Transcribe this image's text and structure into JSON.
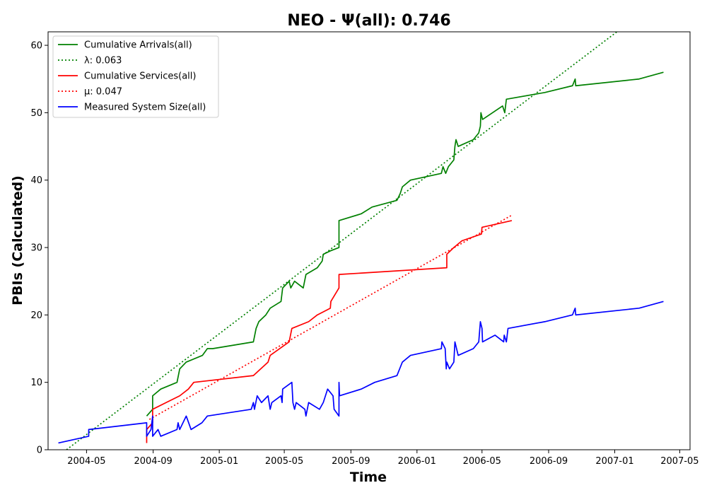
{
  "chart_data": {
    "type": "line",
    "title": "NEO -  Ψ(all): 0.746",
    "xlabel": "Time",
    "ylabel": "PBIs (Calculated)",
    "xlim": [
      "2004-02-20",
      "2007-05-20"
    ],
    "ylim": [
      0,
      62
    ],
    "x_ticks": [
      "2004-05",
      "2004-09",
      "2005-01",
      "2005-05",
      "2005-09",
      "2006-01",
      "2006-05",
      "2006-09",
      "2007-01",
      "2007-05"
    ],
    "y_ticks": [
      0,
      10,
      20,
      30,
      40,
      50,
      60
    ],
    "grid": false,
    "legend_position": "top-left",
    "series": [
      {
        "name": "Cumulative Arrivals(all)",
        "style": "solid",
        "color": "#008000",
        "points": [
          [
            "2004-08-20",
            5
          ],
          [
            "2004-08-31",
            6
          ],
          [
            "2004-08-31",
            8
          ],
          [
            "2004-09-15",
            9
          ],
          [
            "2004-10-15",
            10
          ],
          [
            "2004-10-20",
            12
          ],
          [
            "2004-11-01",
            13
          ],
          [
            "2004-12-01",
            14
          ],
          [
            "2004-12-10",
            15
          ],
          [
            "2004-12-20",
            15
          ],
          [
            "2005-03-05",
            16
          ],
          [
            "2005-03-10",
            18
          ],
          [
            "2005-03-15",
            19
          ],
          [
            "2005-03-28",
            20
          ],
          [
            "2005-04-05",
            21
          ],
          [
            "2005-04-25",
            22
          ],
          [
            "2005-04-28",
            24
          ],
          [
            "2005-05-10",
            25
          ],
          [
            "2005-05-13",
            24
          ],
          [
            "2005-05-20",
            25
          ],
          [
            "2005-06-05",
            24
          ],
          [
            "2005-06-10",
            26
          ],
          [
            "2005-07-01",
            27
          ],
          [
            "2005-07-10",
            28
          ],
          [
            "2005-07-12",
            29
          ],
          [
            "2005-07-25",
            29.5
          ],
          [
            "2005-08-10",
            30
          ],
          [
            "2005-08-10",
            34
          ],
          [
            "2005-09-20",
            35
          ],
          [
            "2005-10-10",
            36
          ],
          [
            "2005-11-25",
            37
          ],
          [
            "2005-12-01",
            38
          ],
          [
            "2005-12-05",
            39
          ],
          [
            "2005-12-20",
            40
          ],
          [
            "2006-02-15",
            41
          ],
          [
            "2006-02-18",
            42
          ],
          [
            "2006-02-23",
            41
          ],
          [
            "2006-02-28",
            42
          ],
          [
            "2006-03-10",
            43
          ],
          [
            "2006-03-12",
            45
          ],
          [
            "2006-03-14",
            46
          ],
          [
            "2006-03-18",
            45
          ],
          [
            "2006-04-15",
            46
          ],
          [
            "2006-04-25",
            47
          ],
          [
            "2006-04-28",
            48
          ],
          [
            "2006-04-29",
            50
          ],
          [
            "2006-05-02",
            49
          ],
          [
            "2006-06-08",
            51
          ],
          [
            "2006-06-12",
            50
          ],
          [
            "2006-06-15",
            52
          ],
          [
            "2006-08-25",
            53
          ],
          [
            "2006-10-15",
            54
          ],
          [
            "2006-10-20",
            55
          ],
          [
            "2006-10-21",
            54
          ],
          [
            "2007-02-15",
            55
          ],
          [
            "2007-04-01",
            56
          ]
        ]
      },
      {
        "name": "λ: 0.063",
        "style": "dotted",
        "color": "#008000",
        "points": [
          [
            "2004-03-25",
            0
          ],
          [
            "2007-01-05",
            62
          ]
        ]
      },
      {
        "name": "Cumulative Services(all)",
        "style": "solid",
        "color": "#ff0000",
        "points": [
          [
            "2004-08-20",
            1
          ],
          [
            "2004-08-20",
            3
          ],
          [
            "2004-08-31",
            4
          ],
          [
            "2004-08-31",
            6
          ],
          [
            "2004-09-25",
            7
          ],
          [
            "2004-10-20",
            8
          ],
          [
            "2004-11-05",
            9
          ],
          [
            "2004-11-15",
            10
          ],
          [
            "2005-03-05",
            11
          ],
          [
            "2005-04-01",
            13
          ],
          [
            "2005-04-05",
            14
          ],
          [
            "2005-05-10",
            16
          ],
          [
            "2005-05-15",
            18
          ],
          [
            "2005-06-15",
            19
          ],
          [
            "2005-07-01",
            20
          ],
          [
            "2005-07-25",
            21
          ],
          [
            "2005-07-26",
            22
          ],
          [
            "2005-08-10",
            24
          ],
          [
            "2005-08-10",
            26
          ],
          [
            "2006-02-25",
            27
          ],
          [
            "2006-02-25",
            29
          ],
          [
            "2006-03-10",
            30
          ],
          [
            "2006-03-25",
            31
          ],
          [
            "2006-04-30",
            32
          ],
          [
            "2006-05-01",
            33
          ],
          [
            "2006-06-25",
            34
          ]
        ]
      },
      {
        "name": "μ: 0.047",
        "style": "dotted",
        "color": "#ff0000",
        "points": [
          [
            "2004-08-25",
            4.5
          ],
          [
            "2006-06-25",
            34.8
          ]
        ]
      },
      {
        "name": "Measured System Size(all)",
        "style": "solid",
        "color": "#0000ff",
        "points": [
          [
            "2004-03-10",
            1
          ],
          [
            "2004-05-05",
            2
          ],
          [
            "2004-05-05",
            3
          ],
          [
            "2004-08-20",
            4
          ],
          [
            "2004-08-20",
            2
          ],
          [
            "2004-08-28",
            3
          ],
          [
            "2004-08-31",
            5
          ],
          [
            "2004-08-31",
            2
          ],
          [
            "2004-09-10",
            3
          ],
          [
            "2004-09-15",
            2
          ],
          [
            "2004-10-15",
            3
          ],
          [
            "2004-10-17",
            4
          ],
          [
            "2004-10-20",
            3
          ],
          [
            "2004-11-01",
            5
          ],
          [
            "2004-11-10",
            3
          ],
          [
            "2004-11-30",
            4
          ],
          [
            "2004-12-10",
            5
          ],
          [
            "2005-03-01",
            6
          ],
          [
            "2005-03-05",
            7
          ],
          [
            "2005-03-07",
            6
          ],
          [
            "2005-03-12",
            8
          ],
          [
            "2005-03-20",
            7
          ],
          [
            "2005-04-01",
            8
          ],
          [
            "2005-04-05",
            6
          ],
          [
            "2005-04-08",
            7
          ],
          [
            "2005-04-25",
            8
          ],
          [
            "2005-04-27",
            7
          ],
          [
            "2005-04-28",
            9
          ],
          [
            "2005-05-15",
            10
          ],
          [
            "2005-05-17",
            7
          ],
          [
            "2005-05-20",
            6
          ],
          [
            "2005-05-23",
            7
          ],
          [
            "2005-06-08",
            6
          ],
          [
            "2005-06-10",
            5
          ],
          [
            "2005-06-15",
            7
          ],
          [
            "2005-07-05",
            6
          ],
          [
            "2005-07-12",
            7
          ],
          [
            "2005-07-20",
            9
          ],
          [
            "2005-07-30",
            8
          ],
          [
            "2005-07-31",
            7
          ],
          [
            "2005-08-01",
            6
          ],
          [
            "2005-08-10",
            5
          ],
          [
            "2005-08-10",
            10
          ],
          [
            "2005-08-11",
            8
          ],
          [
            "2005-09-20",
            9
          ],
          [
            "2005-10-15",
            10
          ],
          [
            "2005-11-25",
            11
          ],
          [
            "2005-12-05",
            13
          ],
          [
            "2005-12-20",
            14
          ],
          [
            "2006-02-15",
            15
          ],
          [
            "2006-02-16",
            16
          ],
          [
            "2006-02-22",
            15
          ],
          [
            "2006-02-24",
            12
          ],
          [
            "2006-02-25",
            13
          ],
          [
            "2006-03-02",
            12
          ],
          [
            "2006-03-10",
            13
          ],
          [
            "2006-03-12",
            16
          ],
          [
            "2006-03-18",
            14
          ],
          [
            "2006-04-15",
            15
          ],
          [
            "2006-04-25",
            16
          ],
          [
            "2006-04-28",
            19
          ],
          [
            "2006-05-01",
            18
          ],
          [
            "2006-05-02",
            16
          ],
          [
            "2006-05-25",
            17
          ],
          [
            "2006-06-10",
            16
          ],
          [
            "2006-06-11",
            17
          ],
          [
            "2006-06-15",
            16
          ],
          [
            "2006-06-18",
            18
          ],
          [
            "2006-08-25",
            19
          ],
          [
            "2006-10-15",
            20
          ],
          [
            "2006-10-20",
            21
          ],
          [
            "2006-10-21",
            20
          ],
          [
            "2007-02-15",
            21
          ],
          [
            "2007-04-01",
            22
          ]
        ]
      }
    ]
  }
}
